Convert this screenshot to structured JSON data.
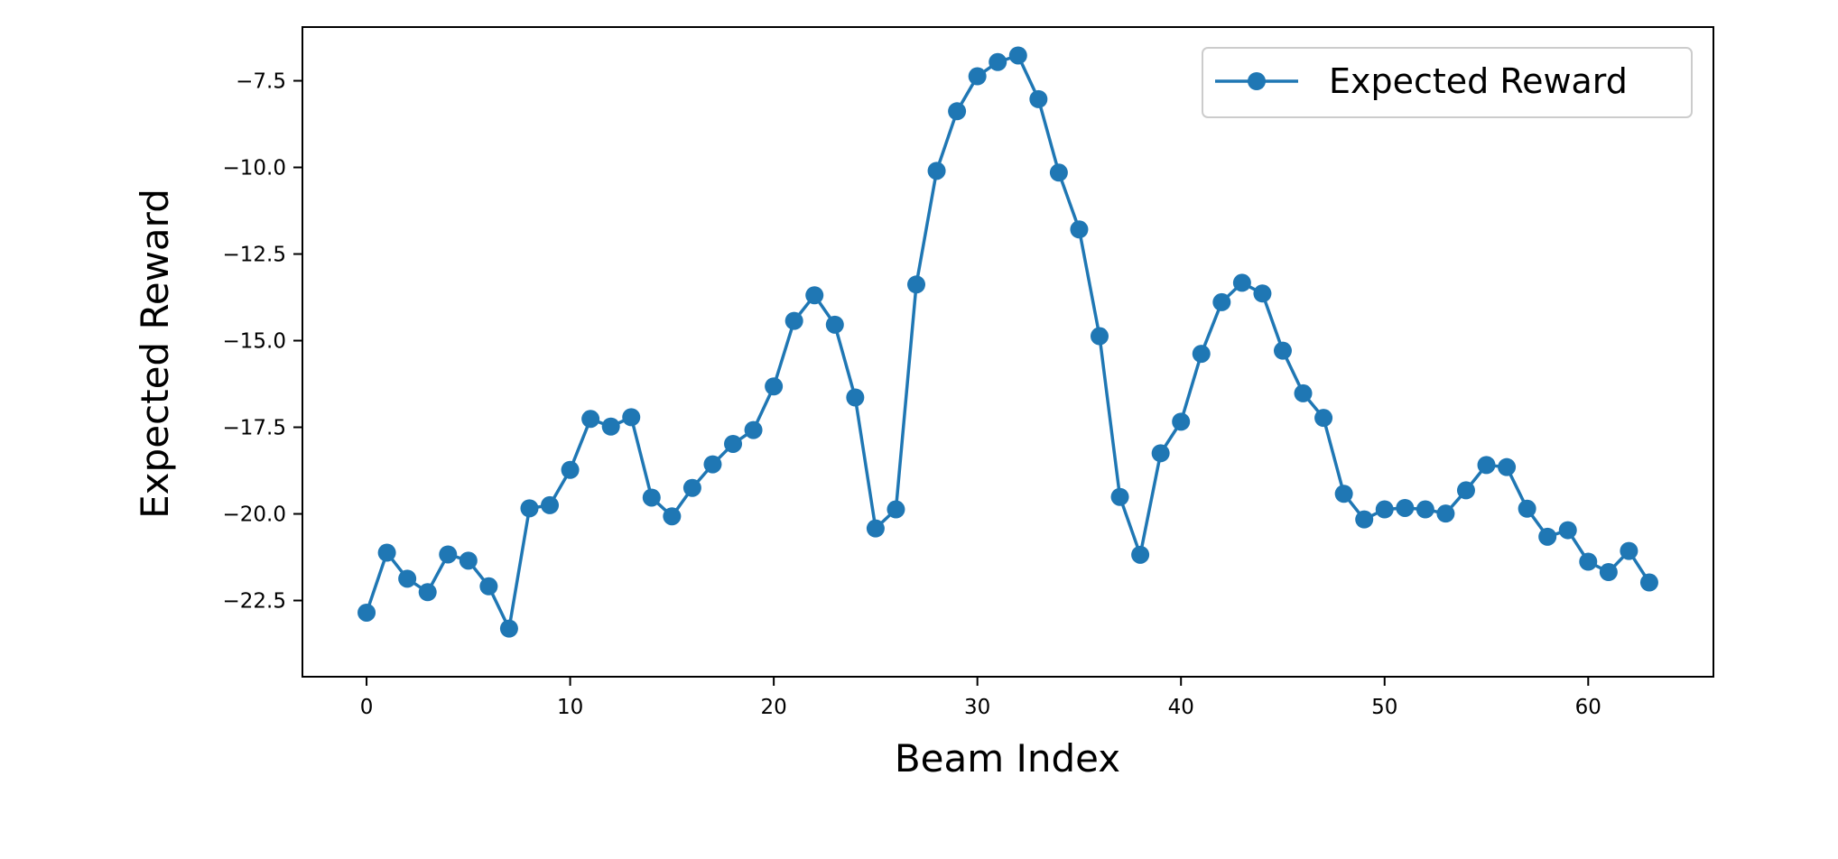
{
  "chart_data": {
    "type": "line",
    "title": "",
    "xlabel": "Beam Index",
    "ylabel": "Expected Reward",
    "xlim": [
      -3.15,
      66.15
    ],
    "ylim": [
      -24.7,
      -5.95
    ],
    "xticks": [
      0,
      10,
      20,
      30,
      40,
      50,
      60
    ],
    "xtick_labels": [
      "0",
      "10",
      "20",
      "30",
      "40",
      "50",
      "60"
    ],
    "yticks": [
      -22.5,
      -20.0,
      -17.5,
      -15.0,
      -12.5,
      -10.0,
      -7.5
    ],
    "ytick_labels": [
      "−22.5",
      "−20.0",
      "−17.5",
      "−15.0",
      "−12.5",
      "−10.0",
      "−7.5"
    ],
    "grid": false,
    "legend_position": "upper right",
    "series": [
      {
        "name": "Expected Reward",
        "color": "#1f77b4",
        "marker": "circle",
        "x": [
          0,
          1,
          2,
          3,
          4,
          5,
          6,
          7,
          8,
          9,
          10,
          11,
          12,
          13,
          14,
          15,
          16,
          17,
          18,
          19,
          20,
          21,
          22,
          23,
          24,
          25,
          26,
          27,
          28,
          29,
          30,
          31,
          32,
          33,
          34,
          35,
          36,
          37,
          38,
          39,
          40,
          41,
          42,
          43,
          44,
          45,
          46,
          47,
          48,
          49,
          50,
          51,
          52,
          53,
          54,
          55,
          56,
          57,
          58,
          59,
          60,
          61,
          62,
          63
        ],
        "values": [
          -22.85,
          -21.12,
          -21.87,
          -22.26,
          -21.17,
          -21.35,
          -22.09,
          -23.31,
          -19.84,
          -19.75,
          -18.73,
          -17.26,
          -17.48,
          -17.21,
          -19.53,
          -20.07,
          -19.25,
          -18.57,
          -17.98,
          -17.58,
          -16.32,
          -14.43,
          -13.69,
          -14.54,
          -16.64,
          -20.42,
          -19.87,
          -13.38,
          -10.1,
          -8.38,
          -7.37,
          -6.96,
          -6.77,
          -8.03,
          -10.15,
          -11.79,
          -14.87,
          -19.51,
          -21.18,
          -18.25,
          -17.34,
          -15.38,
          -13.89,
          -13.33,
          -13.64,
          -15.29,
          -16.52,
          -17.23,
          -19.42,
          -20.16,
          -19.87,
          -19.83,
          -19.87,
          -19.99,
          -19.32,
          -18.59,
          -18.65,
          -19.85,
          -20.66,
          -20.47,
          -21.38,
          -21.68,
          -21.07,
          -21.98
        ]
      }
    ]
  }
}
